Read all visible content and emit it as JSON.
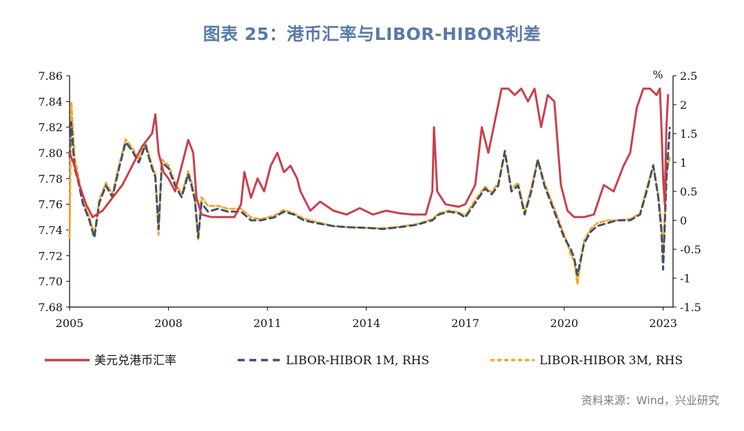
{
  "chart_data": {
    "type": "line",
    "title": "图表 25：港币汇率与LIBOR-HIBOR利差",
    "source": "资料来源：Wind，兴业研究",
    "xlim": [
      2005,
      2023.3
    ],
    "x_ticks": [
      2005,
      2008,
      2011,
      2014,
      2017,
      2020,
      2023
    ],
    "y_left": {
      "min": 7.68,
      "max": 7.86,
      "ticks": [
        "7.68",
        "7.70",
        "7.72",
        "7.74",
        "7.76",
        "7.78",
        "7.80",
        "7.82",
        "7.84",
        "7.86"
      ]
    },
    "y_right": {
      "min": -1.5,
      "max": 2.5,
      "unit": "%",
      "ticks": [
        "-1.5",
        "-1",
        "-0.5",
        "0",
        "0.5",
        "1",
        "1.5",
        "2",
        "2.5"
      ]
    },
    "legend_position": "bottom",
    "series": [
      {
        "name": "美元兑港币汇率",
        "axis": "left",
        "color": "#cc3d4c",
        "style": "solid",
        "x": [
          2005.0,
          2005.15,
          2005.3,
          2005.5,
          2005.7,
          2006.0,
          2006.3,
          2006.6,
          2006.9,
          2007.2,
          2007.5,
          2007.6,
          2007.7,
          2007.85,
          2008.0,
          2008.2,
          2008.4,
          2008.6,
          2008.75,
          2008.85,
          2009.0,
          2009.3,
          2009.6,
          2010.0,
          2010.2,
          2010.3,
          2010.5,
          2010.7,
          2010.9,
          2011.1,
          2011.3,
          2011.5,
          2011.7,
          2011.9,
          2012.0,
          2012.3,
          2012.6,
          2013.0,
          2013.4,
          2013.8,
          2014.2,
          2014.6,
          2015.0,
          2015.4,
          2015.8,
          2016.0,
          2016.05,
          2016.15,
          2016.4,
          2016.8,
          2017.0,
          2017.3,
          2017.5,
          2017.7,
          2017.9,
          2018.1,
          2018.3,
          2018.5,
          2018.7,
          2018.9,
          2019.1,
          2019.3,
          2019.5,
          2019.7,
          2019.9,
          2020.1,
          2020.3,
          2020.6,
          2020.9,
          2021.2,
          2021.5,
          2021.8,
          2022.0,
          2022.2,
          2022.4,
          2022.6,
          2022.8,
          2022.9,
          2022.95,
          2023.0,
          2023.05,
          2023.1,
          2023.15
        ],
        "y": [
          7.8,
          7.79,
          7.775,
          7.76,
          7.75,
          7.755,
          7.765,
          7.775,
          7.79,
          7.805,
          7.815,
          7.83,
          7.8,
          7.785,
          7.78,
          7.77,
          7.79,
          7.81,
          7.8,
          7.765,
          7.752,
          7.75,
          7.75,
          7.75,
          7.76,
          7.785,
          7.765,
          7.78,
          7.77,
          7.79,
          7.8,
          7.785,
          7.79,
          7.78,
          7.77,
          7.755,
          7.762,
          7.755,
          7.752,
          7.757,
          7.752,
          7.755,
          7.753,
          7.752,
          7.752,
          7.77,
          7.82,
          7.77,
          7.76,
          7.758,
          7.76,
          7.775,
          7.82,
          7.8,
          7.825,
          7.85,
          7.85,
          7.845,
          7.85,
          7.84,
          7.85,
          7.82,
          7.845,
          7.84,
          7.775,
          7.755,
          7.75,
          7.75,
          7.752,
          7.775,
          7.77,
          7.79,
          7.8,
          7.835,
          7.85,
          7.85,
          7.845,
          7.85,
          7.82,
          7.78,
          7.76,
          7.82,
          7.845
        ]
      },
      {
        "name": "LIBOR-HIBOR 1M, RHS",
        "axis": "right",
        "color": "#3f4f6e",
        "style": "dashed",
        "x": [
          2005.0,
          2005.05,
          2005.15,
          2005.25,
          2005.4,
          2005.6,
          2005.75,
          2005.9,
          2006.1,
          2006.3,
          2006.5,
          2006.7,
          2006.9,
          2007.1,
          2007.3,
          2007.5,
          2007.6,
          2007.7,
          2007.8,
          2008.0,
          2008.2,
          2008.4,
          2008.6,
          2008.7,
          2008.8,
          2008.9,
          2009.0,
          2009.2,
          2009.5,
          2009.8,
          2010.2,
          2010.5,
          2010.8,
          2011.2,
          2011.5,
          2011.8,
          2012.1,
          2012.5,
          2013.0,
          2013.5,
          2014.0,
          2014.5,
          2015.0,
          2015.5,
          2016.0,
          2016.2,
          2016.5,
          2016.8,
          2017.0,
          2017.3,
          2017.6,
          2017.8,
          2018.0,
          2018.2,
          2018.4,
          2018.6,
          2018.8,
          2019.0,
          2019.2,
          2019.4,
          2019.6,
          2019.8,
          2020.0,
          2020.1,
          2020.2,
          2020.3,
          2020.4,
          2020.6,
          2020.8,
          2021.0,
          2021.3,
          2021.6,
          2022.0,
          2022.3,
          2022.5,
          2022.7,
          2022.85,
          2022.95,
          2023.0,
          2023.1,
          2023.2
        ],
        "y": [
          1.1,
          1.7,
          0.9,
          0.7,
          0.3,
          0.0,
          -0.3,
          0.3,
          0.6,
          0.4,
          0.9,
          1.35,
          1.2,
          1.0,
          1.3,
          0.9,
          0.75,
          -0.15,
          1.0,
          0.9,
          0.6,
          0.4,
          0.8,
          0.6,
          0.35,
          -0.3,
          0.3,
          0.15,
          0.2,
          0.15,
          0.15,
          0.0,
          0.0,
          0.05,
          0.15,
          0.1,
          0.0,
          -0.05,
          -0.1,
          -0.12,
          -0.13,
          -0.15,
          -0.12,
          -0.08,
          0.0,
          0.1,
          0.15,
          0.12,
          0.05,
          0.3,
          0.55,
          0.45,
          0.6,
          1.2,
          0.5,
          0.6,
          0.1,
          0.5,
          1.05,
          0.6,
          0.3,
          0.0,
          -0.3,
          -0.4,
          -0.5,
          -0.65,
          -0.95,
          -0.4,
          -0.2,
          -0.1,
          -0.05,
          0.0,
          0.0,
          0.1,
          0.5,
          0.95,
          0.4,
          -0.2,
          -0.85,
          0.7,
          1.6
        ]
      },
      {
        "name": "LIBOR-HIBOR 3M, RHS",
        "axis": "right",
        "color": "#f2a72b",
        "style": "dashed",
        "x": [
          2005.0,
          2005.05,
          2005.15,
          2005.25,
          2005.4,
          2005.6,
          2005.75,
          2005.9,
          2006.1,
          2006.3,
          2006.5,
          2006.7,
          2006.9,
          2007.1,
          2007.3,
          2007.5,
          2007.6,
          2007.7,
          2007.8,
          2008.0,
          2008.2,
          2008.4,
          2008.6,
          2008.7,
          2008.8,
          2008.9,
          2009.0,
          2009.2,
          2009.5,
          2009.8,
          2010.2,
          2010.5,
          2010.8,
          2011.2,
          2011.5,
          2011.8,
          2012.1,
          2012.5,
          2013.0,
          2013.5,
          2014.0,
          2014.5,
          2015.0,
          2015.5,
          2016.0,
          2016.2,
          2016.5,
          2016.8,
          2017.0,
          2017.3,
          2017.6,
          2017.8,
          2018.0,
          2018.2,
          2018.4,
          2018.6,
          2018.8,
          2019.0,
          2019.2,
          2019.4,
          2019.6,
          2019.8,
          2020.0,
          2020.1,
          2020.2,
          2020.3,
          2020.4,
          2020.6,
          2020.8,
          2021.0,
          2021.3,
          2021.6,
          2022.0,
          2022.3,
          2022.5,
          2022.7,
          2022.85,
          2022.95,
          2023.0,
          2023.1,
          2023.2
        ],
        "y": [
          -0.3,
          2.05,
          1.1,
          0.8,
          0.35,
          0.05,
          -0.25,
          0.35,
          0.65,
          0.45,
          0.95,
          1.4,
          1.25,
          1.05,
          1.35,
          0.95,
          0.8,
          -0.25,
          1.05,
          0.95,
          0.65,
          0.45,
          0.85,
          0.65,
          0.4,
          -0.35,
          0.4,
          0.25,
          0.25,
          0.2,
          0.2,
          0.05,
          0.02,
          0.08,
          0.18,
          0.12,
          0.03,
          -0.03,
          -0.1,
          -0.12,
          -0.13,
          -0.14,
          -0.11,
          -0.07,
          0.02,
          0.12,
          0.17,
          0.14,
          0.08,
          0.35,
          0.58,
          0.48,
          0.65,
          1.15,
          0.55,
          0.65,
          0.15,
          0.55,
          1.05,
          0.65,
          0.35,
          0.05,
          -0.25,
          -0.4,
          -0.6,
          -0.7,
          -1.1,
          -0.35,
          -0.15,
          -0.05,
          0.0,
          0.0,
          0.02,
          0.12,
          0.55,
          0.95,
          0.45,
          -0.1,
          -0.6,
          0.8,
          1.1
        ]
      }
    ]
  }
}
